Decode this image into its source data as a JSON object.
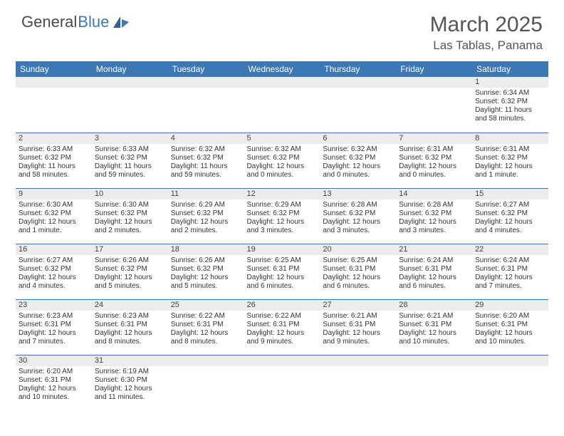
{
  "logo": {
    "text_a": "General",
    "text_b": "Blue"
  },
  "title": "March 2025",
  "location": "Las Tablas, Panama",
  "colors": {
    "header_bg": "#3b78b5",
    "header_fg": "#ffffff",
    "daynum_bg": "#ececec",
    "row_border": "#3b78b5",
    "body_bg": "#ffffff",
    "text": "#333333",
    "logo_gray": "#4a4a4a",
    "logo_blue": "#3b78b5"
  },
  "weekdays": [
    "Sunday",
    "Monday",
    "Tuesday",
    "Wednesday",
    "Thursday",
    "Friday",
    "Saturday"
  ],
  "weeks": [
    [
      null,
      null,
      null,
      null,
      null,
      null,
      {
        "n": "1",
        "sr": "6:34 AM",
        "ss": "6:32 PM",
        "dl": "11 hours and 58 minutes."
      }
    ],
    [
      {
        "n": "2",
        "sr": "6:33 AM",
        "ss": "6:32 PM",
        "dl": "11 hours and 58 minutes."
      },
      {
        "n": "3",
        "sr": "6:33 AM",
        "ss": "6:32 PM",
        "dl": "11 hours and 59 minutes."
      },
      {
        "n": "4",
        "sr": "6:32 AM",
        "ss": "6:32 PM",
        "dl": "11 hours and 59 minutes."
      },
      {
        "n": "5",
        "sr": "6:32 AM",
        "ss": "6:32 PM",
        "dl": "12 hours and 0 minutes."
      },
      {
        "n": "6",
        "sr": "6:32 AM",
        "ss": "6:32 PM",
        "dl": "12 hours and 0 minutes."
      },
      {
        "n": "7",
        "sr": "6:31 AM",
        "ss": "6:32 PM",
        "dl": "12 hours and 0 minutes."
      },
      {
        "n": "8",
        "sr": "6:31 AM",
        "ss": "6:32 PM",
        "dl": "12 hours and 1 minute."
      }
    ],
    [
      {
        "n": "9",
        "sr": "6:30 AM",
        "ss": "6:32 PM",
        "dl": "12 hours and 1 minute."
      },
      {
        "n": "10",
        "sr": "6:30 AM",
        "ss": "6:32 PM",
        "dl": "12 hours and 2 minutes."
      },
      {
        "n": "11",
        "sr": "6:29 AM",
        "ss": "6:32 PM",
        "dl": "12 hours and 2 minutes."
      },
      {
        "n": "12",
        "sr": "6:29 AM",
        "ss": "6:32 PM",
        "dl": "12 hours and 3 minutes."
      },
      {
        "n": "13",
        "sr": "6:28 AM",
        "ss": "6:32 PM",
        "dl": "12 hours and 3 minutes."
      },
      {
        "n": "14",
        "sr": "6:28 AM",
        "ss": "6:32 PM",
        "dl": "12 hours and 3 minutes."
      },
      {
        "n": "15",
        "sr": "6:27 AM",
        "ss": "6:32 PM",
        "dl": "12 hours and 4 minutes."
      }
    ],
    [
      {
        "n": "16",
        "sr": "6:27 AM",
        "ss": "6:32 PM",
        "dl": "12 hours and 4 minutes."
      },
      {
        "n": "17",
        "sr": "6:26 AM",
        "ss": "6:32 PM",
        "dl": "12 hours and 5 minutes."
      },
      {
        "n": "18",
        "sr": "6:26 AM",
        "ss": "6:32 PM",
        "dl": "12 hours and 5 minutes."
      },
      {
        "n": "19",
        "sr": "6:25 AM",
        "ss": "6:31 PM",
        "dl": "12 hours and 6 minutes."
      },
      {
        "n": "20",
        "sr": "6:25 AM",
        "ss": "6:31 PM",
        "dl": "12 hours and 6 minutes."
      },
      {
        "n": "21",
        "sr": "6:24 AM",
        "ss": "6:31 PM",
        "dl": "12 hours and 6 minutes."
      },
      {
        "n": "22",
        "sr": "6:24 AM",
        "ss": "6:31 PM",
        "dl": "12 hours and 7 minutes."
      }
    ],
    [
      {
        "n": "23",
        "sr": "6:23 AM",
        "ss": "6:31 PM",
        "dl": "12 hours and 7 minutes."
      },
      {
        "n": "24",
        "sr": "6:23 AM",
        "ss": "6:31 PM",
        "dl": "12 hours and 8 minutes."
      },
      {
        "n": "25",
        "sr": "6:22 AM",
        "ss": "6:31 PM",
        "dl": "12 hours and 8 minutes."
      },
      {
        "n": "26",
        "sr": "6:22 AM",
        "ss": "6:31 PM",
        "dl": "12 hours and 9 minutes."
      },
      {
        "n": "27",
        "sr": "6:21 AM",
        "ss": "6:31 PM",
        "dl": "12 hours and 9 minutes."
      },
      {
        "n": "28",
        "sr": "6:21 AM",
        "ss": "6:31 PM",
        "dl": "12 hours and 10 minutes."
      },
      {
        "n": "29",
        "sr": "6:20 AM",
        "ss": "6:31 PM",
        "dl": "12 hours and 10 minutes."
      }
    ],
    [
      {
        "n": "30",
        "sr": "6:20 AM",
        "ss": "6:31 PM",
        "dl": "12 hours and 10 minutes."
      },
      {
        "n": "31",
        "sr": "6:19 AM",
        "ss": "6:30 PM",
        "dl": "12 hours and 11 minutes."
      },
      null,
      null,
      null,
      null,
      null
    ]
  ],
  "labels": {
    "sunrise": "Sunrise:",
    "sunset": "Sunset:",
    "daylight": "Daylight:"
  }
}
